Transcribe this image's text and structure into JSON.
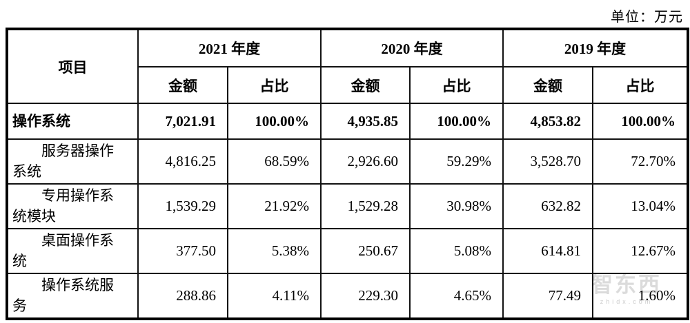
{
  "unit_label": "单位：万元",
  "table": {
    "item_header": "项目",
    "amount_label": "金额",
    "ratio_label": "占比",
    "year_groups": [
      {
        "label": "2021 年度"
      },
      {
        "label": "2020 年度"
      },
      {
        "label": "2019 年度"
      }
    ],
    "rows": [
      {
        "item": "操作系统",
        "bold": true,
        "indent": false,
        "values": [
          "7,021.91",
          "100.00%",
          "4,935.85",
          "100.00%",
          "4,853.82",
          "100.00%"
        ]
      },
      {
        "item": "服务器操作系统",
        "bold": false,
        "indent": true,
        "values": [
          "4,816.25",
          "68.59%",
          "2,926.60",
          "59.29%",
          "3,528.70",
          "72.70%"
        ]
      },
      {
        "item": "专用操作系统模块",
        "bold": false,
        "indent": true,
        "values": [
          "1,539.29",
          "21.92%",
          "1,529.28",
          "30.98%",
          "632.82",
          "13.04%"
        ]
      },
      {
        "item": "桌面操作系统",
        "bold": false,
        "indent": true,
        "values": [
          "377.50",
          "5.38%",
          "250.67",
          "5.08%",
          "614.81",
          "12.67%"
        ]
      },
      {
        "item": "操作系统服务",
        "bold": false,
        "indent": true,
        "values": [
          "288.86",
          "4.11%",
          "229.30",
          "4.65%",
          "77.49",
          "1.60%"
        ]
      }
    ]
  },
  "watermark": {
    "logo_text": "智东西",
    "sub_text": "zhidx.com"
  }
}
